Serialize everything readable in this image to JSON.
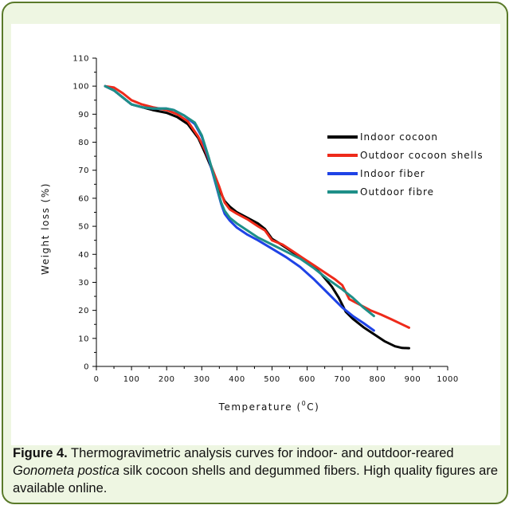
{
  "caption": {
    "label": "Figure 4.",
    "text_before": " Thermogravimetric analysis curves for indoor- and outdoor-reared ",
    "species": "Gonometa postica",
    "text_after": " silk cocoon shells and degummed fibers. High quality figures are available online."
  },
  "chart_data": {
    "type": "line",
    "title": "",
    "xlabel": "Temperature (°C)",
    "xlabel_main": "Temperature (",
    "xlabel_sup": "0",
    "xlabel_unit": "C)",
    "ylabel": "Weight loss (%)",
    "xlim": [
      0,
      1000
    ],
    "ylim": [
      0,
      110
    ],
    "xticks": [
      0,
      100,
      200,
      300,
      400,
      500,
      600,
      700,
      800,
      900,
      1000
    ],
    "yticks": [
      0,
      10,
      20,
      30,
      40,
      50,
      60,
      70,
      80,
      90,
      100,
      110
    ],
    "grid": false,
    "legend_position": "right",
    "series": [
      {
        "name": "Indoor cocoon",
        "color": "#000000",
        "points": [
          [
            25,
            100
          ],
          [
            50,
            98.5
          ],
          [
            75,
            96
          ],
          [
            100,
            93.5
          ],
          [
            130,
            92.5
          ],
          [
            160,
            91.5
          ],
          [
            200,
            90.5
          ],
          [
            230,
            89
          ],
          [
            260,
            86.5
          ],
          [
            290,
            81.5
          ],
          [
            310,
            76
          ],
          [
            330,
            70
          ],
          [
            350,
            63
          ],
          [
            365,
            59
          ],
          [
            380,
            57
          ],
          [
            400,
            55
          ],
          [
            430,
            53
          ],
          [
            460,
            51
          ],
          [
            480,
            49
          ],
          [
            500,
            45.5
          ],
          [
            520,
            44
          ],
          [
            550,
            41.5
          ],
          [
            580,
            39
          ],
          [
            610,
            36.5
          ],
          [
            640,
            33
          ],
          [
            670,
            28.5
          ],
          [
            690,
            24.5
          ],
          [
            710,
            19.5
          ],
          [
            730,
            17
          ],
          [
            760,
            14
          ],
          [
            790,
            11.5
          ],
          [
            820,
            9
          ],
          [
            850,
            7.2
          ],
          [
            870,
            6.6
          ],
          [
            890,
            6.5
          ]
        ]
      },
      {
        "name": "Outdoor cocoon shells",
        "color": "#ee2a1a",
        "points": [
          [
            25,
            100
          ],
          [
            50,
            99.5
          ],
          [
            75,
            97.5
          ],
          [
            100,
            95
          ],
          [
            130,
            93.5
          ],
          [
            160,
            92.5
          ],
          [
            200,
            91.5
          ],
          [
            230,
            90
          ],
          [
            260,
            87.5
          ],
          [
            290,
            82
          ],
          [
            310,
            77
          ],
          [
            330,
            70.5
          ],
          [
            350,
            64
          ],
          [
            365,
            58.5
          ],
          [
            380,
            56
          ],
          [
            400,
            54.5
          ],
          [
            430,
            52.5
          ],
          [
            460,
            50
          ],
          [
            480,
            48.5
          ],
          [
            500,
            45
          ],
          [
            530,
            43.5
          ],
          [
            560,
            41
          ],
          [
            590,
            38.5
          ],
          [
            620,
            36
          ],
          [
            650,
            33.5
          ],
          [
            680,
            31
          ],
          [
            700,
            29
          ],
          [
            720,
            24
          ],
          [
            750,
            22
          ],
          [
            780,
            20
          ],
          [
            810,
            18.5
          ],
          [
            840,
            16.8
          ],
          [
            870,
            15
          ],
          [
            890,
            13.8
          ]
        ]
      },
      {
        "name": "Indoor fiber",
        "color": "#1f43e6",
        "points": [
          [
            25,
            100
          ],
          [
            50,
            98.5
          ],
          [
            75,
            96
          ],
          [
            100,
            93.5
          ],
          [
            130,
            92.5
          ],
          [
            160,
            92
          ],
          [
            200,
            92
          ],
          [
            220,
            91.5
          ],
          [
            250,
            89.5
          ],
          [
            280,
            86.5
          ],
          [
            300,
            82
          ],
          [
            320,
            74
          ],
          [
            340,
            65
          ],
          [
            355,
            58
          ],
          [
            365,
            54.5
          ],
          [
            380,
            52
          ],
          [
            400,
            49.5
          ],
          [
            430,
            47
          ],
          [
            460,
            45
          ],
          [
            500,
            42
          ],
          [
            540,
            39
          ],
          [
            580,
            35.5
          ],
          [
            620,
            31
          ],
          [
            660,
            26
          ],
          [
            700,
            21
          ],
          [
            730,
            18
          ],
          [
            760,
            15.5
          ],
          [
            790,
            12.8
          ]
        ]
      },
      {
        "name": "Outdoor fibre",
        "color": "#1e8f88",
        "points": [
          [
            25,
            100
          ],
          [
            50,
            98.5
          ],
          [
            75,
            96
          ],
          [
            100,
            93.5
          ],
          [
            130,
            92.5
          ],
          [
            160,
            92
          ],
          [
            200,
            92
          ],
          [
            220,
            91.5
          ],
          [
            250,
            89.5
          ],
          [
            280,
            87
          ],
          [
            300,
            82.5
          ],
          [
            320,
            74.5
          ],
          [
            340,
            65.5
          ],
          [
            355,
            58.5
          ],
          [
            365,
            55.5
          ],
          [
            380,
            53
          ],
          [
            400,
            51
          ],
          [
            430,
            48.5
          ],
          [
            460,
            46
          ],
          [
            500,
            43.5
          ],
          [
            540,
            41
          ],
          [
            580,
            38.5
          ],
          [
            620,
            35
          ],
          [
            660,
            31
          ],
          [
            700,
            27.5
          ],
          [
            730,
            24.5
          ],
          [
            760,
            21
          ],
          [
            790,
            18
          ]
        ]
      }
    ]
  }
}
